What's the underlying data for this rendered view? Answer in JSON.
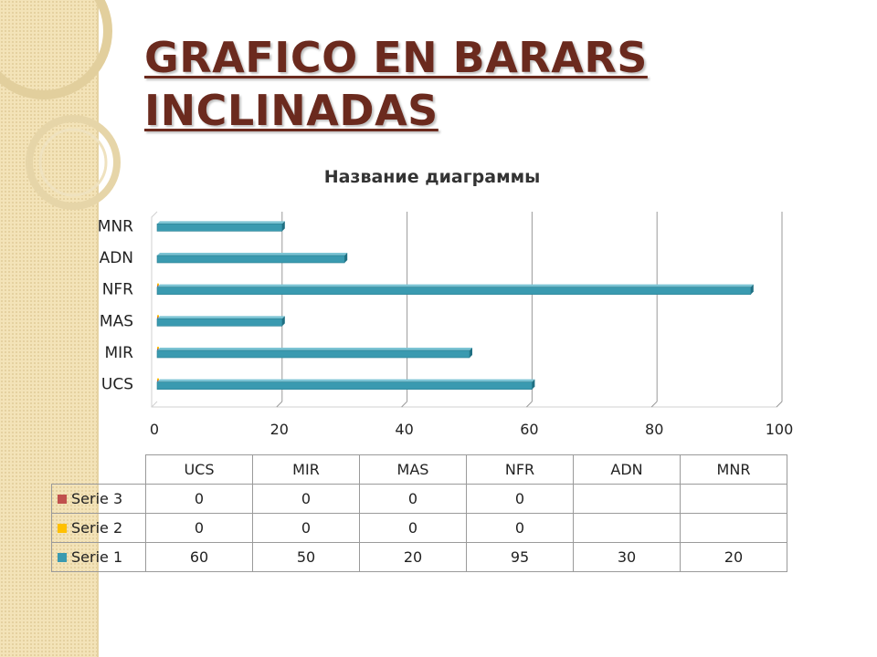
{
  "slide": {
    "title": "GRAFICO EN BARARS INCLINADAS"
  },
  "chart_data": {
    "type": "bar",
    "orientation": "horizontal",
    "title": "Название диаграммы",
    "categories": [
      "UCS",
      "MIR",
      "MAS",
      "NFR",
      "ADN",
      "MNR"
    ],
    "series": [
      {
        "name": "Serie 1",
        "color": "#3a9ab0",
        "values": [
          60,
          50,
          20,
          95,
          30,
          20
        ]
      },
      {
        "name": "Serie 2",
        "color": "#ffc000",
        "values": [
          0,
          0,
          0,
          0,
          null,
          null
        ]
      },
      {
        "name": "Serie 3",
        "color": "#c0504d",
        "values": [
          0,
          0,
          0,
          0,
          null,
          null
        ]
      }
    ],
    "xlim": [
      0,
      100
    ],
    "ticks": [
      "0",
      "20",
      "40",
      "60",
      "80",
      "100"
    ],
    "grid": true,
    "legend": "data table below chart",
    "style": "3-D clustered bar"
  },
  "table": {
    "headers": [
      "UCS",
      "MIR",
      "MAS",
      "NFR",
      "ADN",
      "MNR"
    ],
    "rows": [
      {
        "label": "Serie 3",
        "color": "#c0504d",
        "cells": [
          "0",
          "0",
          "0",
          "0",
          "",
          ""
        ]
      },
      {
        "label": "Serie 2",
        "color": "#ffc000",
        "cells": [
          "0",
          "0",
          "0",
          "0",
          "",
          ""
        ]
      },
      {
        "label": "Serie 1",
        "color": "#3a9ab0",
        "cells": [
          "60",
          "50",
          "20",
          "95",
          "30",
          "20"
        ]
      }
    ]
  }
}
